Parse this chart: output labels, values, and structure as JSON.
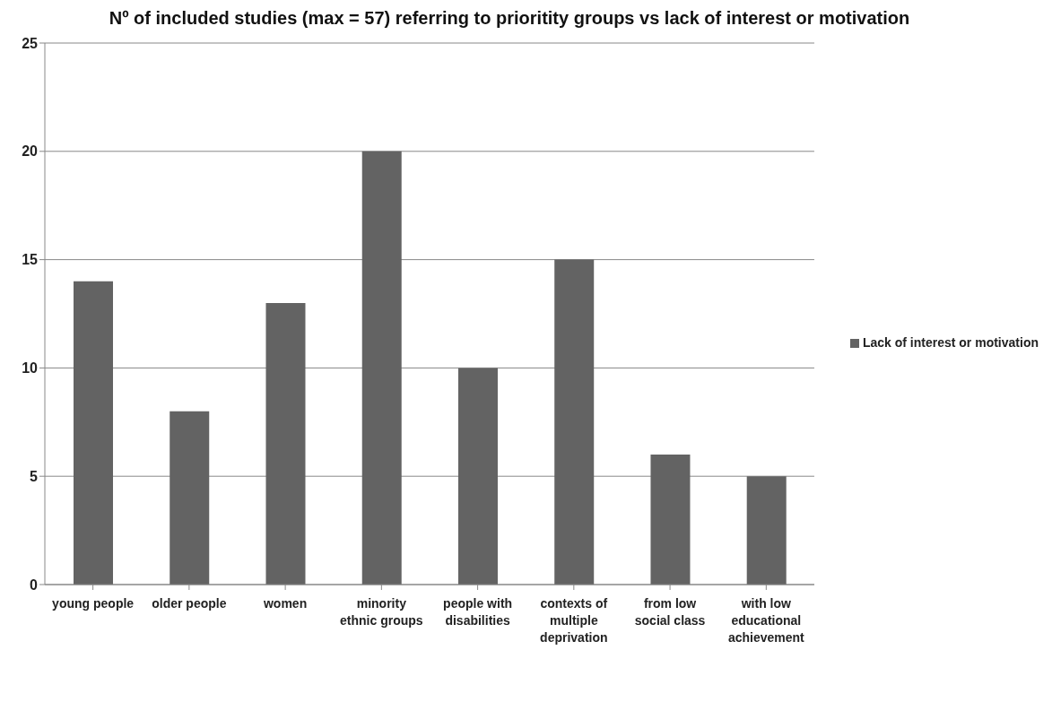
{
  "chart_data": {
    "type": "bar",
    "title": "Nº of included studies (max = 57) referring to prioritity groups vs lack of interest or motivation",
    "categories": [
      "young people",
      "older people",
      "women",
      "minority ethnic groups",
      "people with disabilities",
      "contexts of multiple deprivation",
      "from low social class",
      "with low educational achievement"
    ],
    "series": [
      {
        "name": "Lack of interest or motivation",
        "color": "#636363",
        "values": [
          14,
          8,
          13,
          20,
          10,
          15,
          6,
          5
        ]
      }
    ],
    "ylim": [
      0,
      25
    ],
    "yticks": [
      0,
      5,
      10,
      15,
      20,
      25
    ],
    "grid": "y",
    "legend": "right"
  }
}
